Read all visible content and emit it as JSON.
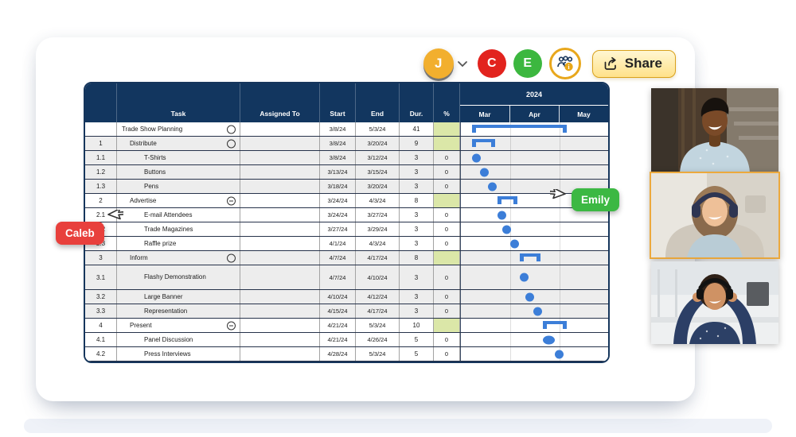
{
  "topbar": {
    "share_label": "Share",
    "avatars": [
      {
        "initial": "J",
        "color": "#F2AF2E"
      },
      {
        "initial": "C",
        "color": "#E2231E"
      },
      {
        "initial": "E",
        "color": "#3CB73F"
      }
    ]
  },
  "cursors": [
    {
      "name": "Caleb",
      "color": "#E8403C"
    },
    {
      "name": "Emily",
      "color": "#3CB843"
    }
  ],
  "call_panel": {
    "active_border": "#ECA93D",
    "participants": [
      {
        "label": "video participant 1",
        "active": false
      },
      {
        "label": "video participant 2",
        "active": true
      },
      {
        "label": "video participant 3",
        "active": false
      }
    ]
  },
  "sheet": {
    "year": "2024",
    "months": [
      "Mar",
      "Apr",
      "May"
    ],
    "columns": [
      "Task",
      "Assigned To",
      "Start",
      "End",
      "Dur.",
      "%"
    ],
    "colors": {
      "header": "#12365F",
      "summary_green": "#DBE7A8",
      "bar_blue": "#3C7ED8",
      "band_gray": "#EDEDED"
    },
    "rows": [
      {
        "num": "",
        "task": "Trade Show Planning",
        "icon": "circle",
        "level": 0,
        "assigned": "",
        "start": "3/8/24",
        "end": "5/3/24",
        "dur": "41",
        "pct": "",
        "green": true,
        "band": "white",
        "gantt": "summary",
        "tall": false
      },
      {
        "num": "1",
        "task": "Distribute",
        "icon": "circle",
        "level": 1,
        "assigned": "",
        "start": "3/8/24",
        "end": "3/20/24",
        "dur": "9",
        "pct": "",
        "green": true,
        "band": "gray",
        "gantt": "summary",
        "tall": false
      },
      {
        "num": "1.1",
        "task": "T-Shirts",
        "icon": null,
        "level": 2,
        "assigned": "",
        "start": "3/8/24",
        "end": "3/12/24",
        "dur": "3",
        "pct": "0",
        "green": false,
        "band": "gray",
        "gantt": "dot",
        "tall": false
      },
      {
        "num": "1.2",
        "task": "Buttons",
        "icon": null,
        "level": 2,
        "assigned": "",
        "start": "3/13/24",
        "end": "3/15/24",
        "dur": "3",
        "pct": "0",
        "green": false,
        "band": "gray",
        "gantt": "dot",
        "tall": false
      },
      {
        "num": "1.3",
        "task": "Pens",
        "icon": null,
        "level": 2,
        "assigned": "",
        "start": "3/18/24",
        "end": "3/20/24",
        "dur": "3",
        "pct": "0",
        "green": false,
        "band": "gray",
        "gantt": "dot",
        "tall": false
      },
      {
        "num": "2",
        "task": "Advertise",
        "icon": "circle-minus",
        "level": 1,
        "assigned": "",
        "start": "3/24/24",
        "end": "4/3/24",
        "dur": "8",
        "pct": "",
        "green": true,
        "band": "white",
        "gantt": "summary",
        "tall": false
      },
      {
        "num": "2.1",
        "task": "E-mail Attendees",
        "icon": null,
        "level": 2,
        "assigned": "",
        "start": "3/24/24",
        "end": "3/27/24",
        "dur": "3",
        "pct": "0",
        "green": false,
        "band": "white",
        "gantt": "dot",
        "tall": false
      },
      {
        "num": "2.2",
        "task": "Trade Magazines",
        "icon": null,
        "level": 2,
        "assigned": "",
        "start": "3/27/24",
        "end": "3/29/24",
        "dur": "3",
        "pct": "0",
        "green": false,
        "band": "white",
        "gantt": "dot",
        "tall": false
      },
      {
        "num": "2.3",
        "task": "Raffle prize",
        "icon": null,
        "level": 2,
        "assigned": "",
        "start": "4/1/24",
        "end": "4/3/24",
        "dur": "3",
        "pct": "0",
        "green": false,
        "band": "white",
        "gantt": "dot",
        "tall": false
      },
      {
        "num": "3",
        "task": "Inform",
        "icon": "circle",
        "level": 1,
        "assigned": "",
        "start": "4/7/24",
        "end": "4/17/24",
        "dur": "8",
        "pct": "",
        "green": true,
        "band": "gray",
        "gantt": "summary",
        "tall": false
      },
      {
        "num": "3.1",
        "task": "Flashy Demonstration",
        "icon": null,
        "level": 2,
        "assigned": "",
        "start": "4/7/24",
        "end": "4/10/24",
        "dur": "3",
        "pct": "0",
        "green": false,
        "band": "gray",
        "gantt": "dot",
        "tall": true
      },
      {
        "num": "3.2",
        "task": "Large Banner",
        "icon": null,
        "level": 2,
        "assigned": "",
        "start": "4/10/24",
        "end": "4/12/24",
        "dur": "3",
        "pct": "0",
        "green": false,
        "band": "gray",
        "gantt": "dot",
        "tall": false
      },
      {
        "num": "3.3",
        "task": "Representation",
        "icon": null,
        "level": 2,
        "assigned": "",
        "start": "4/15/24",
        "end": "4/17/24",
        "dur": "3",
        "pct": "0",
        "green": false,
        "band": "gray",
        "gantt": "dot",
        "tall": false
      },
      {
        "num": "4",
        "task": "Present",
        "icon": "circle-minus",
        "level": 1,
        "assigned": "",
        "start": "4/21/24",
        "end": "5/3/24",
        "dur": "10",
        "pct": "",
        "green": true,
        "band": "white",
        "gantt": "summary",
        "tall": false
      },
      {
        "num": "4.1",
        "task": "Panel Discussion",
        "icon": null,
        "level": 2,
        "assigned": "",
        "start": "4/21/24",
        "end": "4/26/24",
        "dur": "5",
        "pct": "0",
        "green": false,
        "band": "white",
        "gantt": "dot-wide",
        "tall": false
      },
      {
        "num": "4.2",
        "task": "Press Interviews",
        "icon": null,
        "level": 2,
        "assigned": "",
        "start": "4/28/24",
        "end": "5/3/24",
        "dur": "5",
        "pct": "0",
        "green": false,
        "band": "white",
        "gantt": "dot",
        "tall": false
      }
    ]
  }
}
